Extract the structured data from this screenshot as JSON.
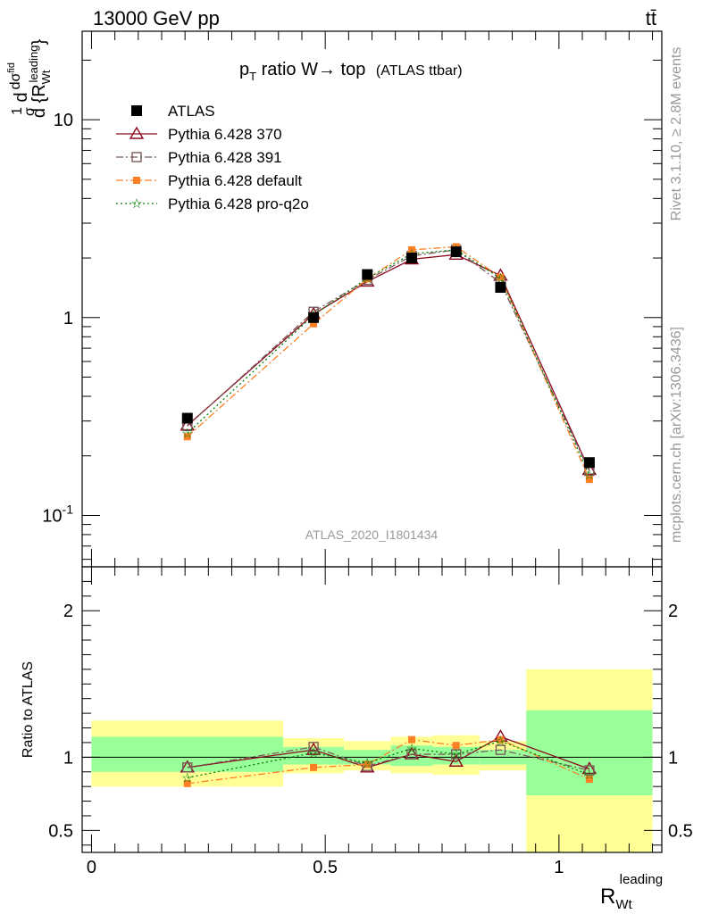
{
  "header": {
    "energy_label": "13000 GeV pp",
    "process_label": "tt̄"
  },
  "side_labels": {
    "rivet": "Rivet 3.1.10, ≥ 2.8M events",
    "source": "mcplots.cern.ch [arXiv:1306.3436]"
  },
  "plot_title": {
    "main": "p",
    "sub": "T",
    "rest": " ratio W→ top",
    "small": "(ATLAS ttbar)"
  },
  "watermark": "ATLAS_2020_I1801434",
  "colors": {
    "atlas": "#000000",
    "p370": "#8b0a1e",
    "p391": "#7b5a5a",
    "pdefault": "#ff7f24",
    "pq2o": "#008000",
    "band_yellow": "#ffff96",
    "band_green": "#99ff99"
  },
  "chart_data": [
    {
      "type": "line",
      "title": "",
      "xlabel": "R_Wt^leading",
      "ylabel": "1/σ dσ^{fid}/d{R_Wt^leading}",
      "yscale": "log",
      "ylim": [
        0.055,
        28
      ],
      "xlim": [
        -0.02,
        1.22
      ],
      "y_ticks": [
        "10^{-1}",
        "1",
        "10"
      ],
      "x": [
        0.205,
        0.475,
        0.59,
        0.685,
        0.78,
        0.875,
        1.065
      ],
      "series": [
        {
          "name": "ATLAS",
          "values": [
            0.31,
            1.0,
            1.65,
            2.0,
            2.15,
            1.42,
            0.185
          ]
        },
        {
          "name": "Pythia 6.428 370",
          "values": [
            0.285,
            1.04,
            1.52,
            1.97,
            2.08,
            1.63,
            0.17
          ]
        },
        {
          "name": "Pythia 6.428 391",
          "values": [
            0.283,
            1.07,
            1.55,
            2.05,
            2.2,
            1.5,
            0.168
          ]
        },
        {
          "name": "Pythia 6.428 default",
          "values": [
            0.25,
            0.93,
            1.57,
            2.2,
            2.28,
            1.6,
            0.152
          ]
        },
        {
          "name": "Pythia 6.428 pro-q2o",
          "values": [
            0.26,
            1.03,
            1.58,
            2.1,
            2.2,
            1.58,
            0.16
          ]
        }
      ]
    },
    {
      "type": "line",
      "title": "",
      "xlabel": "R_Wt^leading",
      "ylabel": "Ratio to ATLAS",
      "ylim": [
        0.35,
        2.3
      ],
      "y_ticks": [
        "0.5",
        "1",
        "2"
      ],
      "x_ticks": [
        "0",
        "0.5",
        "1"
      ],
      "bands": [
        {
          "x": [
            0.0,
            0.41
          ],
          "yellow": [
            0.8,
            1.25
          ],
          "green": [
            0.9,
            1.14
          ]
        },
        {
          "x": [
            0.41,
            0.54
          ],
          "yellow": [
            0.89,
            1.13
          ],
          "green": [
            0.95,
            1.07
          ]
        },
        {
          "x": [
            0.54,
            0.64
          ],
          "yellow": [
            0.91,
            1.11
          ],
          "green": [
            0.95,
            1.05
          ]
        },
        {
          "x": [
            0.64,
            0.73
          ],
          "yellow": [
            0.89,
            1.14
          ],
          "green": [
            0.94,
            1.08
          ]
        },
        {
          "x": [
            0.73,
            0.83
          ],
          "yellow": [
            0.88,
            1.15
          ],
          "green": [
            0.95,
            1.07
          ]
        },
        {
          "x": [
            0.83,
            0.93
          ],
          "yellow": [
            0.91,
            1.11
          ],
          "green": [
            0.95,
            1.05
          ]
        },
        {
          "x": [
            0.93,
            1.2
          ],
          "yellow": [
            0.35,
            1.6
          ],
          "green": [
            0.74,
            1.32
          ]
        }
      ],
      "x": [
        0.205,
        0.475,
        0.59,
        0.685,
        0.78,
        0.875,
        1.065
      ],
      "series": [
        {
          "name": "Pythia 6.428 370",
          "values": [
            0.93,
            1.05,
            0.93,
            1.02,
            0.97,
            1.14,
            0.92
          ]
        },
        {
          "name": "Pythia 6.428 391",
          "values": [
            0.93,
            1.07,
            0.94,
            1.02,
            1.02,
            1.05,
            0.91
          ]
        },
        {
          "name": "Pythia 6.428 default",
          "values": [
            0.82,
            0.93,
            0.95,
            1.12,
            1.08,
            1.12,
            0.85
          ]
        },
        {
          "name": "Pythia 6.428 pro-q2o",
          "values": [
            0.86,
            1.03,
            0.96,
            1.06,
            1.02,
            1.11,
            0.88
          ]
        }
      ]
    }
  ]
}
